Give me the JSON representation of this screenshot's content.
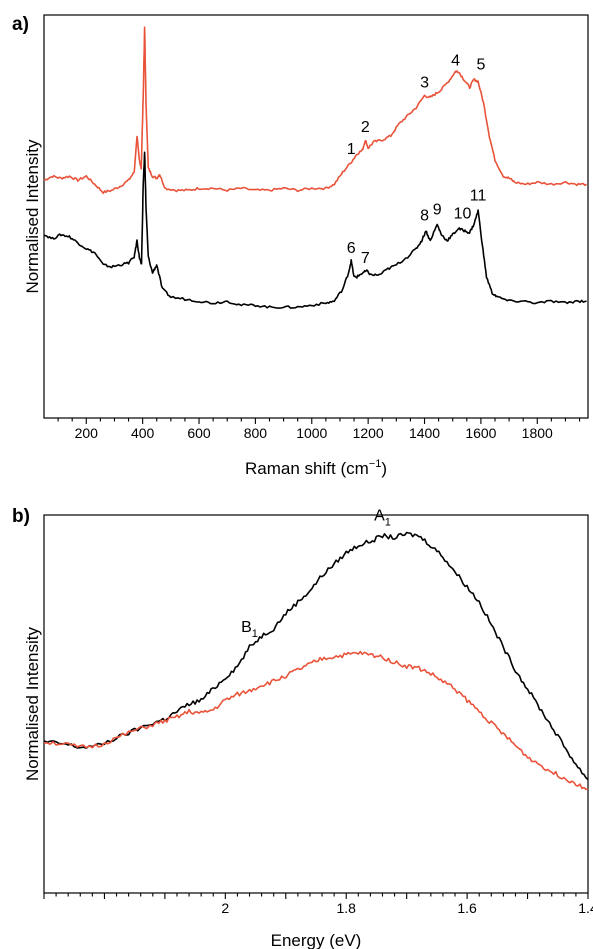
{
  "chart_data": [
    {
      "panel": "a)",
      "type": "line",
      "xlabel": "Raman shift (cm",
      "xlabel_sup": "−1",
      "xlabel_tail": ")",
      "ylabel": "Normalised Intensity",
      "xlim": [
        50,
        1980
      ],
      "ylim": [
        0,
        1
      ],
      "x_ticks_labeled": [
        200,
        400,
        600,
        800,
        1000,
        1200,
        1400,
        1600,
        1800
      ],
      "colors": {
        "red": "#e8533a",
        "black": "#000000"
      },
      "series": [
        {
          "color": "#e8533a",
          "points": [
            [
              50,
              0.59
            ],
            [
              80,
              0.6
            ],
            [
              110,
              0.595
            ],
            [
              140,
              0.6
            ],
            [
              170,
              0.59
            ],
            [
              200,
              0.6
            ],
            [
              230,
              0.58
            ],
            [
              260,
              0.56
            ],
            [
              290,
              0.565
            ],
            [
              320,
              0.575
            ],
            [
              350,
              0.59
            ],
            [
              370,
              0.61
            ],
            [
              380,
              0.7
            ],
            [
              388,
              0.64
            ],
            [
              395,
              0.62
            ],
            [
              402,
              0.8
            ],
            [
              407,
              0.97
            ],
            [
              412,
              0.78
            ],
            [
              420,
              0.62
            ],
            [
              435,
              0.6
            ],
            [
              450,
              0.595
            ],
            [
              460,
              0.605
            ],
            [
              480,
              0.57
            ],
            [
              520,
              0.565
            ],
            [
              560,
              0.565
            ],
            [
              600,
              0.57
            ],
            [
              650,
              0.57
            ],
            [
              700,
              0.565
            ],
            [
              750,
              0.57
            ],
            [
              800,
              0.565
            ],
            [
              850,
              0.565
            ],
            [
              900,
              0.57
            ],
            [
              950,
              0.565
            ],
            [
              1000,
              0.57
            ],
            [
              1050,
              0.57
            ],
            [
              1080,
              0.58
            ],
            [
              1110,
              0.61
            ],
            [
              1140,
              0.635
            ],
            [
              1160,
              0.655
            ],
            [
              1180,
              0.665
            ],
            [
              1190,
              0.69
            ],
            [
              1200,
              0.67
            ],
            [
              1220,
              0.685
            ],
            [
              1250,
              0.69
            ],
            [
              1280,
              0.7
            ],
            [
              1310,
              0.73
            ],
            [
              1340,
              0.75
            ],
            [
              1370,
              0.77
            ],
            [
              1400,
              0.8
            ],
            [
              1420,
              0.795
            ],
            [
              1440,
              0.805
            ],
            [
              1460,
              0.815
            ],
            [
              1490,
              0.84
            ],
            [
              1510,
              0.86
            ],
            [
              1520,
              0.86
            ],
            [
              1540,
              0.84
            ],
            [
              1560,
              0.82
            ],
            [
              1575,
              0.84
            ],
            [
              1590,
              0.835
            ],
            [
              1610,
              0.78
            ],
            [
              1630,
              0.7
            ],
            [
              1650,
              0.64
            ],
            [
              1680,
              0.6
            ],
            [
              1700,
              0.595
            ],
            [
              1720,
              0.585
            ],
            [
              1760,
              0.58
            ],
            [
              1800,
              0.585
            ],
            [
              1850,
              0.58
            ],
            [
              1900,
              0.585
            ],
            [
              1940,
              0.58
            ],
            [
              1975,
              0.58
            ]
          ]
        },
        {
          "color": "#000000",
          "points": [
            [
              50,
              0.455
            ],
            [
              80,
              0.445
            ],
            [
              110,
              0.455
            ],
            [
              140,
              0.45
            ],
            [
              170,
              0.435
            ],
            [
              200,
              0.42
            ],
            [
              230,
              0.41
            ],
            [
              260,
              0.38
            ],
            [
              290,
              0.375
            ],
            [
              320,
              0.38
            ],
            [
              350,
              0.385
            ],
            [
              370,
              0.4
            ],
            [
              380,
              0.44
            ],
            [
              388,
              0.4
            ],
            [
              396,
              0.38
            ],
            [
              402,
              0.58
            ],
            [
              407,
              0.66
            ],
            [
              412,
              0.52
            ],
            [
              420,
              0.4
            ],
            [
              435,
              0.36
            ],
            [
              450,
              0.38
            ],
            [
              470,
              0.32
            ],
            [
              500,
              0.3
            ],
            [
              550,
              0.295
            ],
            [
              600,
              0.29
            ],
            [
              650,
              0.285
            ],
            [
              700,
              0.29
            ],
            [
              750,
              0.28
            ],
            [
              800,
              0.28
            ],
            [
              850,
              0.275
            ],
            [
              900,
              0.275
            ],
            [
              950,
              0.275
            ],
            [
              1000,
              0.28
            ],
            [
              1050,
              0.285
            ],
            [
              1080,
              0.29
            ],
            [
              1110,
              0.32
            ],
            [
              1130,
              0.36
            ],
            [
              1140,
              0.39
            ],
            [
              1150,
              0.35
            ],
            [
              1160,
              0.35
            ],
            [
              1180,
              0.36
            ],
            [
              1195,
              0.365
            ],
            [
              1210,
              0.355
            ],
            [
              1240,
              0.355
            ],
            [
              1270,
              0.37
            ],
            [
              1300,
              0.38
            ],
            [
              1340,
              0.4
            ],
            [
              1370,
              0.42
            ],
            [
              1390,
              0.44
            ],
            [
              1405,
              0.465
            ],
            [
              1420,
              0.44
            ],
            [
              1445,
              0.48
            ],
            [
              1460,
              0.455
            ],
            [
              1480,
              0.44
            ],
            [
              1500,
              0.455
            ],
            [
              1520,
              0.47
            ],
            [
              1540,
              0.465
            ],
            [
              1560,
              0.46
            ],
            [
              1575,
              0.48
            ],
            [
              1590,
              0.515
            ],
            [
              1605,
              0.43
            ],
            [
              1620,
              0.35
            ],
            [
              1640,
              0.31
            ],
            [
              1660,
              0.3
            ],
            [
              1700,
              0.29
            ],
            [
              1750,
              0.29
            ],
            [
              1800,
              0.285
            ],
            [
              1850,
              0.29
            ],
            [
              1900,
              0.285
            ],
            [
              1940,
              0.29
            ],
            [
              1975,
              0.29
            ]
          ]
        }
      ],
      "annotations": [
        {
          "text": "1",
          "x": 1140,
          "y": 0.655
        },
        {
          "text": "2",
          "x": 1190,
          "y": 0.71
        },
        {
          "text": "3",
          "x": 1400,
          "y": 0.82
        },
        {
          "text": "4",
          "x": 1510,
          "y": 0.875
        },
        {
          "text": "5",
          "x": 1600,
          "y": 0.865
        },
        {
          "text": "6",
          "x": 1140,
          "y": 0.41
        },
        {
          "text": "7",
          "x": 1190,
          "y": 0.385
        },
        {
          "text": "8",
          "x": 1400,
          "y": 0.49
        },
        {
          "text": "9",
          "x": 1445,
          "y": 0.505
        },
        {
          "text": "10",
          "x": 1535,
          "y": 0.495
        },
        {
          "text": "11",
          "x": 1590,
          "y": 0.54
        }
      ]
    },
    {
      "panel": "b)",
      "type": "line",
      "xlabel": "Energy (eV)",
      "ylabel": "Normalised Intensity",
      "xlim": [
        2.3,
        1.4
      ],
      "ylim": [
        0,
        1
      ],
      "x_ticks_labeled": [
        2.0,
        1.8,
        1.6,
        1.4
      ],
      "colors": {
        "red": "#e8533a",
        "black": "#000000"
      },
      "series": [
        {
          "color": "#000000",
          "points": [
            [
              2.3,
              0.4
            ],
            [
              2.27,
              0.395
            ],
            [
              2.24,
              0.385
            ],
            [
              2.21,
              0.39
            ],
            [
              2.18,
              0.41
            ],
            [
              2.15,
              0.43
            ],
            [
              2.12,
              0.45
            ],
            [
              2.1,
              0.46
            ],
            [
              2.08,
              0.48
            ],
            [
              2.06,
              0.5
            ],
            [
              2.04,
              0.51
            ],
            [
              2.02,
              0.54
            ],
            [
              2.0,
              0.57
            ],
            [
              1.98,
              0.6
            ],
            [
              1.96,
              0.65
            ],
            [
              1.94,
              0.68
            ],
            [
              1.92,
              0.7
            ],
            [
              1.9,
              0.74
            ],
            [
              1.88,
              0.77
            ],
            [
              1.86,
              0.8
            ],
            [
              1.84,
              0.84
            ],
            [
              1.82,
              0.87
            ],
            [
              1.8,
              0.9
            ],
            [
              1.78,
              0.92
            ],
            [
              1.76,
              0.93
            ],
            [
              1.74,
              0.945
            ],
            [
              1.72,
              0.94
            ],
            [
              1.7,
              0.95
            ],
            [
              1.68,
              0.945
            ],
            [
              1.66,
              0.92
            ],
            [
              1.64,
              0.89
            ],
            [
              1.62,
              0.85
            ],
            [
              1.6,
              0.81
            ],
            [
              1.58,
              0.77
            ],
            [
              1.56,
              0.71
            ],
            [
              1.54,
              0.65
            ],
            [
              1.52,
              0.59
            ],
            [
              1.5,
              0.54
            ],
            [
              1.48,
              0.49
            ],
            [
              1.46,
              0.44
            ],
            [
              1.44,
              0.39
            ],
            [
              1.42,
              0.34
            ],
            [
              1.4,
              0.3
            ]
          ]
        },
        {
          "color": "#e8533a",
          "points": [
            [
              2.3,
              0.4
            ],
            [
              2.27,
              0.395
            ],
            [
              2.24,
              0.385
            ],
            [
              2.21,
              0.39
            ],
            [
              2.18,
              0.41
            ],
            [
              2.15,
              0.43
            ],
            [
              2.12,
              0.445
            ],
            [
              2.1,
              0.455
            ],
            [
              2.08,
              0.465
            ],
            [
              2.06,
              0.48
            ],
            [
              2.04,
              0.475
            ],
            [
              2.02,
              0.485
            ],
            [
              2.0,
              0.51
            ],
            [
              1.98,
              0.525
            ],
            [
              1.96,
              0.535
            ],
            [
              1.94,
              0.55
            ],
            [
              1.92,
              0.56
            ],
            [
              1.9,
              0.575
            ],
            [
              1.88,
              0.59
            ],
            [
              1.86,
              0.605
            ],
            [
              1.84,
              0.62
            ],
            [
              1.82,
              0.625
            ],
            [
              1.8,
              0.63
            ],
            [
              1.78,
              0.635
            ],
            [
              1.76,
              0.63
            ],
            [
              1.74,
              0.625
            ],
            [
              1.72,
              0.61
            ],
            [
              1.7,
              0.6
            ],
            [
              1.68,
              0.595
            ],
            [
              1.66,
              0.58
            ],
            [
              1.64,
              0.56
            ],
            [
              1.62,
              0.54
            ],
            [
              1.6,
              0.51
            ],
            [
              1.58,
              0.48
            ],
            [
              1.56,
              0.45
            ],
            [
              1.54,
              0.42
            ],
            [
              1.52,
              0.39
            ],
            [
              1.5,
              0.36
            ],
            [
              1.48,
              0.34
            ],
            [
              1.46,
              0.32
            ],
            [
              1.44,
              0.305
            ],
            [
              1.42,
              0.29
            ],
            [
              1.4,
              0.275
            ]
          ]
        }
      ],
      "annotations": [
        {
          "text": "A",
          "sub": "1",
          "x": 1.74,
          "y": 0.985
        },
        {
          "text": "B",
          "sub": "1",
          "x": 1.96,
          "y": 0.69
        }
      ]
    }
  ]
}
